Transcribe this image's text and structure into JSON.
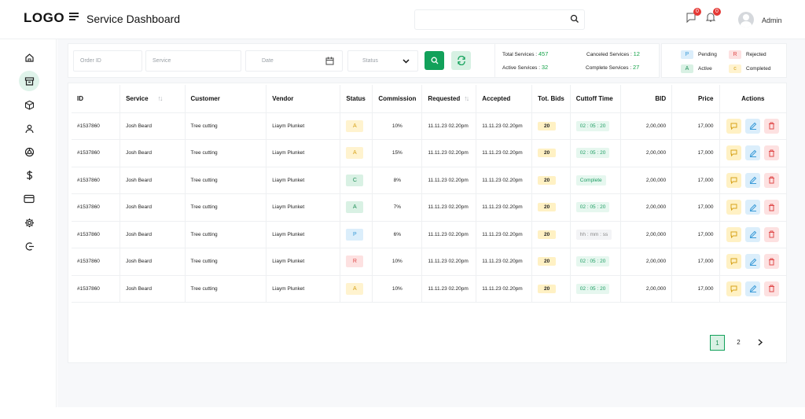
{
  "header": {
    "logo": "LOGO",
    "title": "Service Dashboard",
    "admin": "Admin",
    "notif1": "0",
    "notif2": "0"
  },
  "filters": {
    "order_id": "Order ID",
    "service": "Service",
    "date": "Date",
    "status": "Status"
  },
  "stats": {
    "total_label": "Total Services :",
    "total": "457",
    "canceled_label": "Canceled Services :",
    "canceled": "12",
    "active_label": "Active Services :",
    "active": "32",
    "complete_label": "Complete Services :",
    "complete": "27"
  },
  "legend": [
    {
      "code": "P",
      "label": "Pending"
    },
    {
      "code": "R",
      "label": "Rejected"
    },
    {
      "code": "A",
      "label": "Active"
    },
    {
      "code": "c",
      "label": "Completed"
    }
  ],
  "table": {
    "headers": [
      "ID",
      "Service",
      "Customer",
      "Vendor",
      "Status",
      "Commission",
      "Requested",
      "Accepted",
      "Tot. Bids",
      "Cuttoff Time",
      "BID",
      "Price",
      "Actions"
    ],
    "rows": [
      {
        "id": "#1537860",
        "service": "Josh Beard",
        "customer": "Tree cutting",
        "vendor": "Liaym Plunket",
        "status": "A",
        "status_class": "A",
        "commission": "10%",
        "requested": "11.11.23  02.20pm",
        "accepted": "11.11.23  02.20pm",
        "bids": "20",
        "cutoff": "02  :  05 :  20",
        "cutoff_style": "green",
        "bid": "2,00,000",
        "price": "17,000"
      },
      {
        "id": "#1537860",
        "service": "Josh Beard",
        "customer": "Tree cutting",
        "vendor": "Liaym Plunket",
        "status": "A",
        "status_class": "A",
        "commission": "15%",
        "requested": "11.11.23  02.20pm",
        "accepted": "11.11.23  02.20pm",
        "bids": "20",
        "cutoff": "02  :  05 :  20",
        "cutoff_style": "green",
        "bid": "2,00,000",
        "price": "17,000"
      },
      {
        "id": "#1537860",
        "service": "Josh Beard",
        "customer": "Tree cutting",
        "vendor": "Liaym Plunket",
        "status": "C",
        "status_class": "C",
        "commission": "8%",
        "requested": "11.11.23  02.20pm",
        "accepted": "11.11.23  02.20pm",
        "bids": "20",
        "cutoff": "Complete",
        "cutoff_style": "green",
        "bid": "2,00,000",
        "price": "17,000"
      },
      {
        "id": "#1537860",
        "service": "Josh Beard",
        "customer": "Tree cutting",
        "vendor": "Liaym Plunket",
        "status": "A",
        "status_class": "G",
        "commission": "7%",
        "requested": "11.11.23  02.20pm",
        "accepted": "11.11.23  02.20pm",
        "bids": "20",
        "cutoff": "02  :  05 :  20",
        "cutoff_style": "green",
        "bid": "2,00,000",
        "price": "17,000"
      },
      {
        "id": "#1537860",
        "service": "Josh Beard",
        "customer": "Tree cutting",
        "vendor": "Liaym Plunket",
        "status": "P",
        "status_class": "P",
        "commission": "6%",
        "requested": "11.11.23  02.20pm",
        "accepted": "11.11.23  02.20pm",
        "bids": "20",
        "cutoff": "hh  :  mm  : ss",
        "cutoff_style": "gray",
        "bid": "2,00,000",
        "price": "17,000"
      },
      {
        "id": "#1537860",
        "service": "Josh Beard",
        "customer": "Tree cutting",
        "vendor": "Liaym Plunket",
        "status": "R",
        "status_class": "R",
        "commission": "10%",
        "requested": "11.11.23  02.20pm",
        "accepted": "11.11.23  02.20pm",
        "bids": "20",
        "cutoff": "02  :  05 :  20",
        "cutoff_style": "green",
        "bid": "2,00,000",
        "price": "17,000"
      },
      {
        "id": "#1537860",
        "service": "Josh Beard",
        "customer": "Tree cutting",
        "vendor": "Liaym Plunket",
        "status": "A",
        "status_class": "A",
        "commission": "10%",
        "requested": "11.11.23  02.20pm",
        "accepted": "11.11.23  02.20pm",
        "bids": "20",
        "cutoff": "02  :  05 :  20",
        "cutoff_style": "green",
        "bid": "2,00,000",
        "price": "17,000"
      }
    ]
  },
  "pagination": [
    "1",
    "2"
  ],
  "sidebar_icons": [
    "home-icon",
    "archive-icon",
    "box-icon",
    "user-icon",
    "settings-wheel-icon",
    "dollar-icon",
    "card-icon",
    "gear-icon",
    "logout-icon"
  ],
  "colors": {
    "accent": "#12a15a",
    "accent_light": "#d9f1e4"
  }
}
